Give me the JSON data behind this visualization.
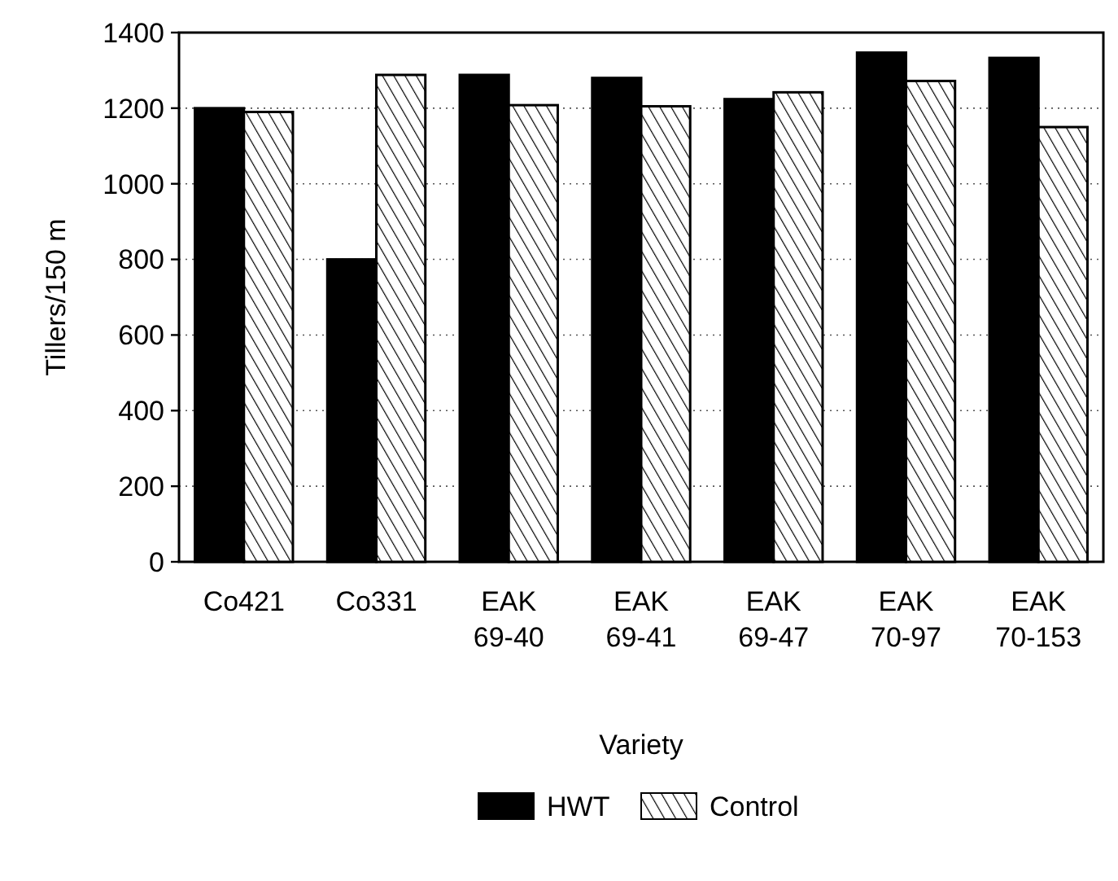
{
  "chart_data": {
    "type": "bar",
    "xlabel": "Variety",
    "ylabel": "Tillers/150 m",
    "categories": [
      "Co421",
      "Co331",
      "EAK\n69-40",
      "EAK\n69-41",
      "EAK\n69-47",
      "EAK\n70-97",
      "EAK\n70-153"
    ],
    "series": [
      {
        "name": "HWT",
        "color": "#000000",
        "values": [
          1200,
          800,
          1288,
          1280,
          1224,
          1347,
          1333
        ]
      },
      {
        "name": "Control",
        "color": "#000000",
        "values": [
          1190,
          1288,
          1208,
          1205,
          1242,
          1272,
          1150
        ]
      }
    ],
    "ylim": [
      0,
      1400
    ],
    "yticks": [
      0,
      200,
      400,
      600,
      800,
      1000,
      1200,
      1400
    ],
    "grid": "y",
    "legend": "bottom"
  }
}
